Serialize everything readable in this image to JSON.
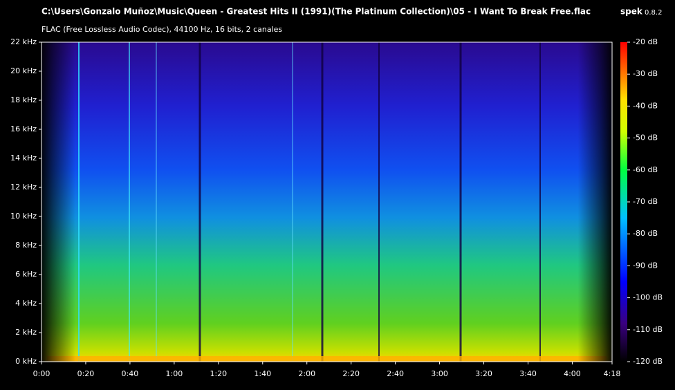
{
  "header": {
    "title": "C:\\Users\\Gonzalo Muñoz\\Music\\Queen - Greatest Hits II (1991)(The Platinum Collection)\\05 - I Want To Break Free.flac",
    "app": "spek",
    "version": "0.8.2",
    "subtitle": "FLAC (Free Lossless Audio Codec), 44100 Hz, 16 bits, 2 canales"
  },
  "frequency_axis": {
    "labels": [
      "22 kHz",
      "20 kHz",
      "18 kHz",
      "16 kHz",
      "14 kHz",
      "12 kHz",
      "10 kHz",
      "8 kHz",
      "6 kHz",
      "4 kHz",
      "2 kHz",
      "0 kHz"
    ]
  },
  "time_axis": {
    "labels": [
      "0:00",
      "0:20",
      "0:40",
      "1:00",
      "1:20",
      "1:40",
      "2:00",
      "2:20",
      "2:40",
      "3:00",
      "3:20",
      "3:40",
      "4:00",
      "4:18"
    ]
  },
  "level_scale": {
    "labels": [
      "-20 dB",
      "-30 dB",
      "-40 dB",
      "-50 dB",
      "-60 dB",
      "-70 dB",
      "-80 dB",
      "-90 dB",
      "-100 dB",
      "-110 dB",
      "-120 dB"
    ]
  }
}
